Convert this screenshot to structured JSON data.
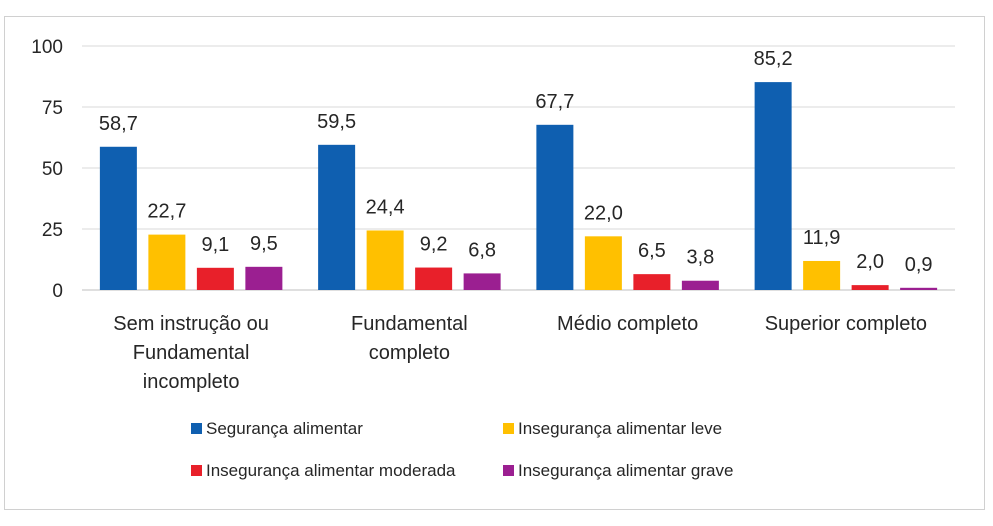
{
  "chart_data": {
    "type": "bar",
    "categories": [
      [
        "Sem instrução ou",
        "Fundamental",
        "incompleto"
      ],
      [
        "Fundamental",
        "completo"
      ],
      [
        "Médio completo"
      ],
      [
        "Superior completo"
      ]
    ],
    "series": [
      {
        "name": "Segurança alimentar",
        "color": "#0f5fb0",
        "values": [
          58.7,
          59.5,
          67.7,
          85.2
        ],
        "labels": [
          "58,7",
          "59,5",
          "67,7",
          "85,2"
        ]
      },
      {
        "name": "Insegurança alimentar leve",
        "color": "#ffc000",
        "values": [
          22.7,
          24.4,
          22.0,
          11.9
        ],
        "labels": [
          "22,7",
          "24,4",
          "22,0",
          "11,9"
        ]
      },
      {
        "name": "Insegurança alimentar moderada",
        "color": "#e8202a",
        "values": [
          9.1,
          9.2,
          6.5,
          2.0
        ],
        "labels": [
          "9,1",
          "9,2",
          "6,5",
          "2,0"
        ]
      },
      {
        "name": "Insegurança alimentar grave",
        "color": "#9b1f91",
        "values": [
          9.5,
          6.8,
          3.8,
          0.9
        ],
        "labels": [
          "9,5",
          "6,8",
          "3,8",
          "0,9"
        ]
      }
    ],
    "ylim": [
      0,
      100
    ],
    "yticks": [
      "0",
      "25",
      "50",
      "75",
      "100"
    ],
    "grid": true,
    "legend_position": "bottom"
  }
}
